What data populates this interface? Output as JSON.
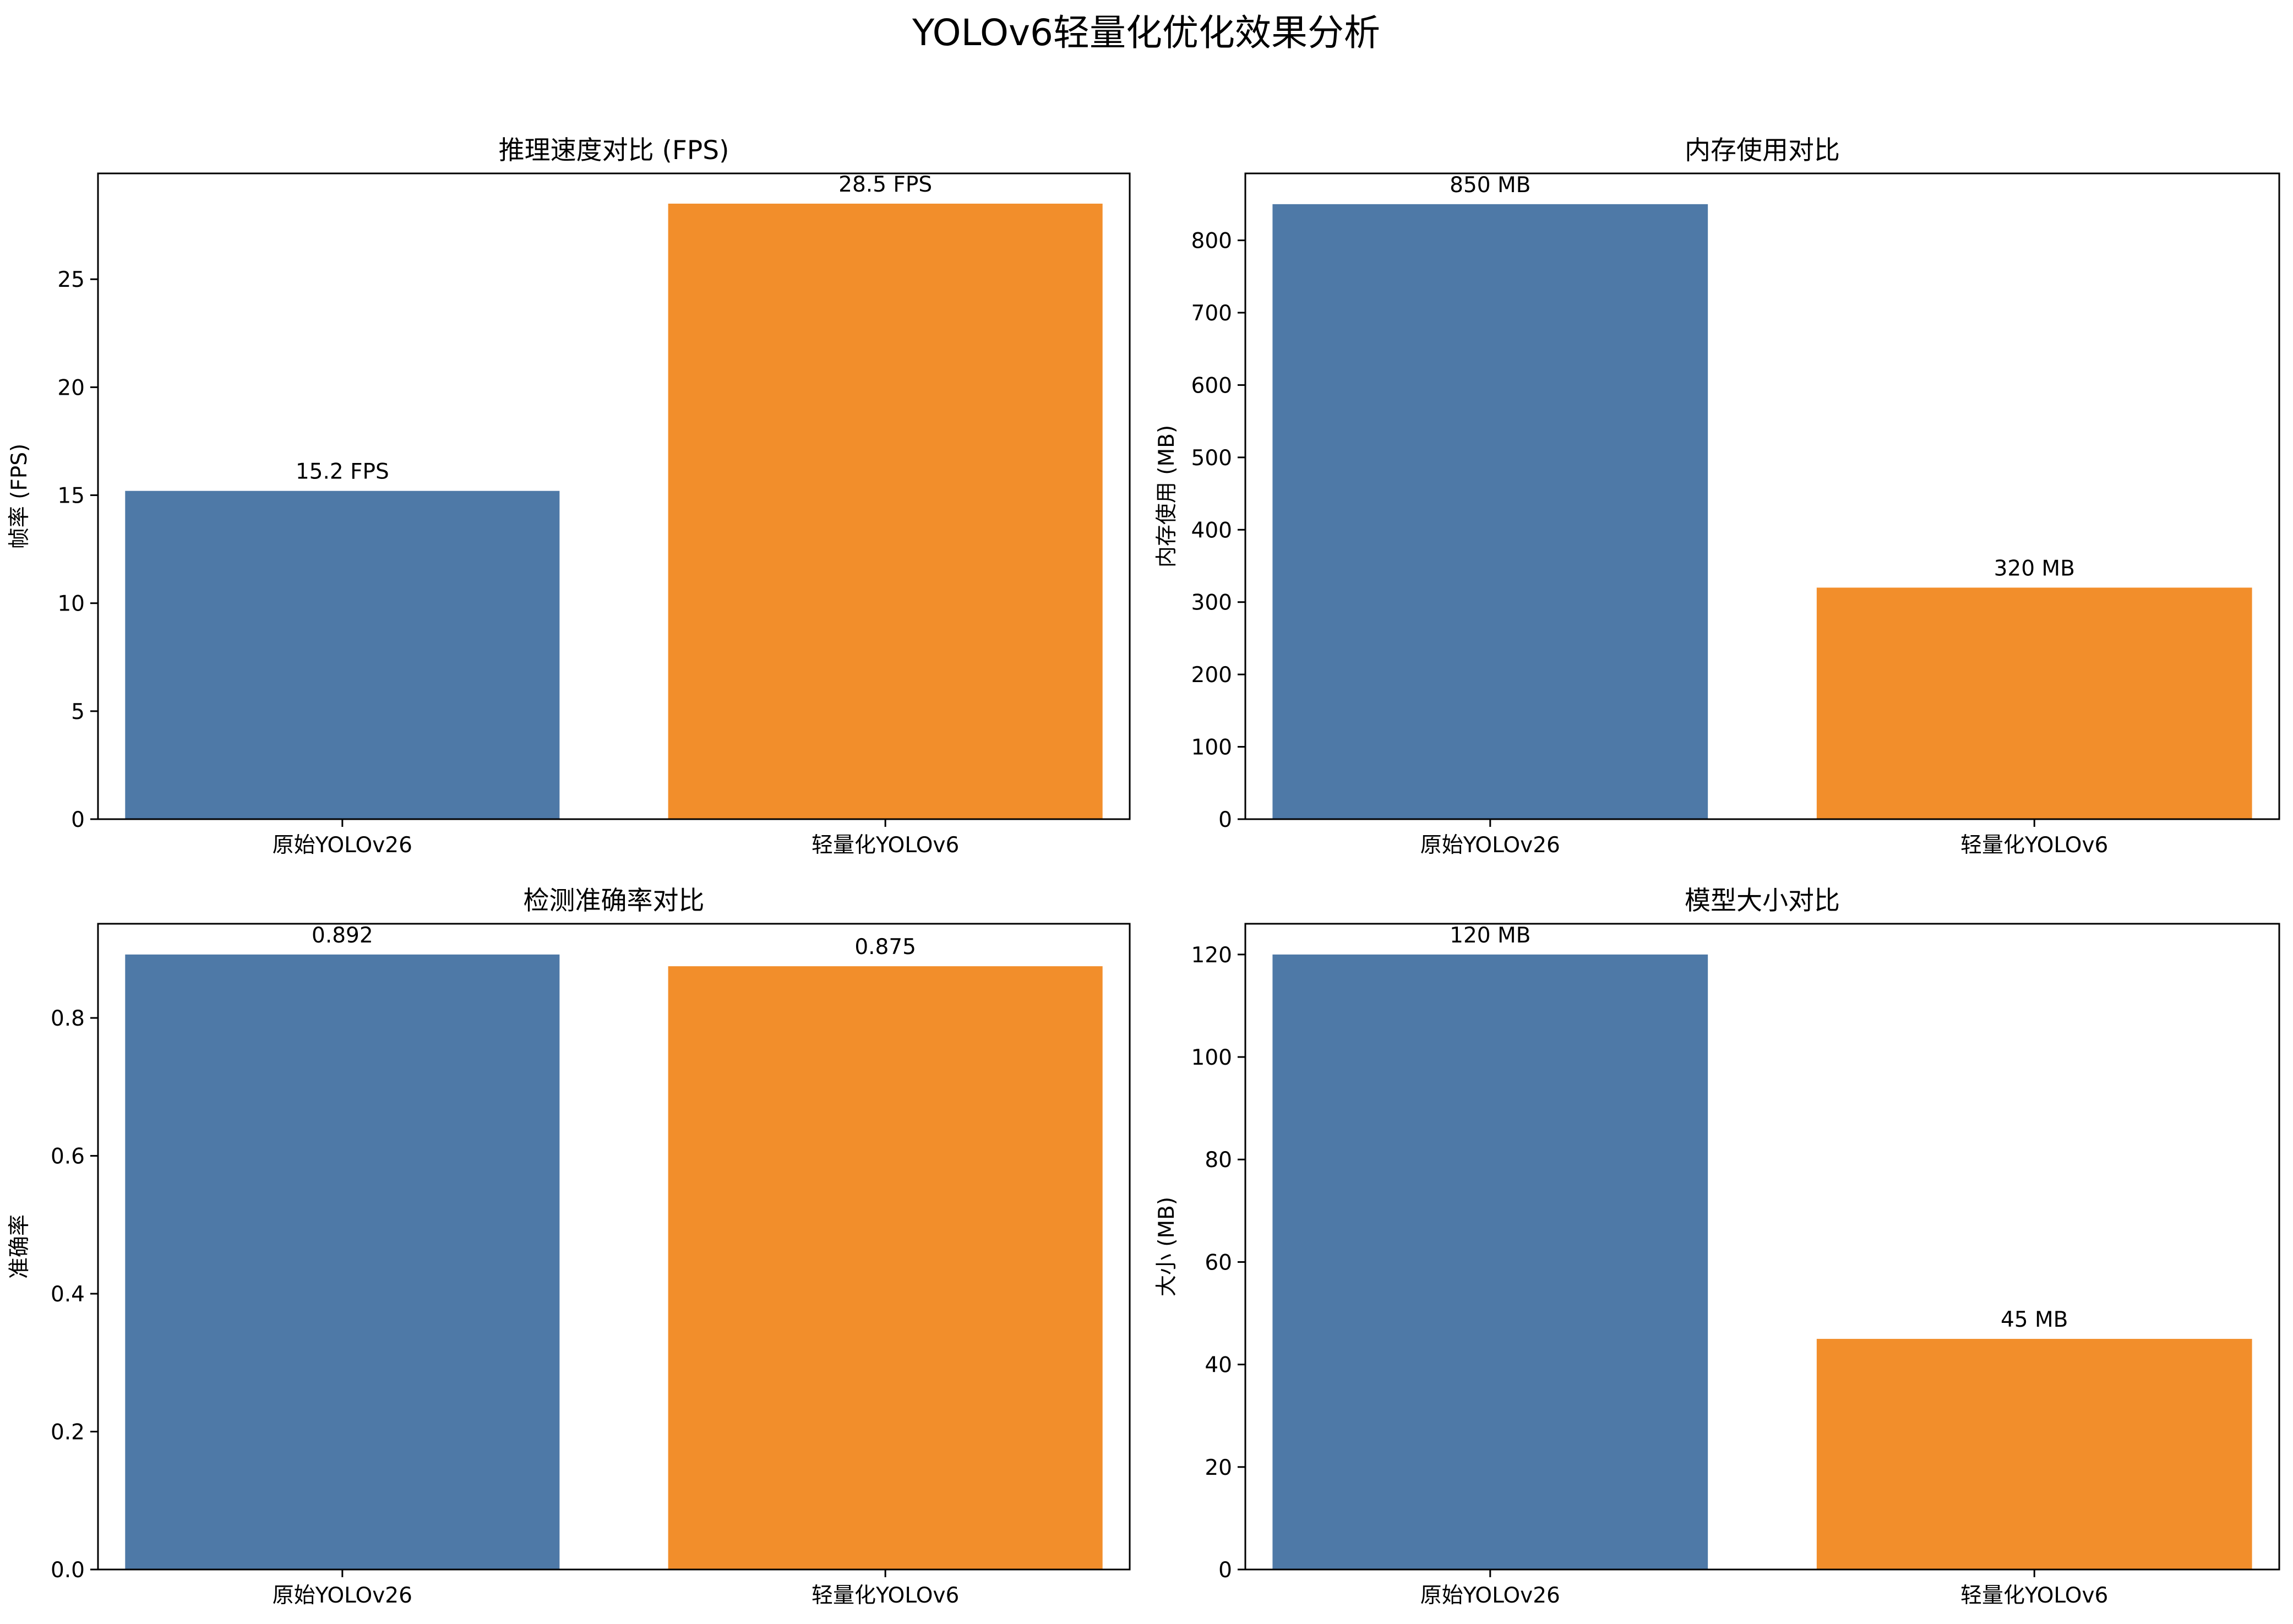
{
  "figure_title": "YOLOv6轻量化优化效果分析",
  "colors": {
    "original": "#4e79a7",
    "lightweight": "#f28e2b"
  },
  "chart_data": [
    {
      "type": "bar",
      "title": "推理速度对比 (FPS)",
      "xlabel": "",
      "ylabel": "帧率 (FPS)",
      "categories": [
        "原始YOLOv26",
        "轻量化YOLOv6"
      ],
      "values": [
        15.2,
        28.5
      ],
      "bar_labels": [
        "15.2 FPS",
        "28.5 FPS"
      ],
      "ylim": [
        0,
        29.9
      ],
      "yticks": [
        0,
        5,
        10,
        15,
        20,
        25
      ],
      "ytick_labels": [
        "0",
        "5",
        "10",
        "15",
        "20",
        "25"
      ]
    },
    {
      "type": "bar",
      "title": "内存使用对比",
      "xlabel": "",
      "ylabel": "内存使用 (MB)",
      "categories": [
        "原始YOLOv26",
        "轻量化YOLOv6"
      ],
      "values": [
        850,
        320
      ],
      "bar_labels": [
        "850 MB",
        "320 MB"
      ],
      "ylim": [
        0,
        892.5
      ],
      "yticks": [
        0,
        100,
        200,
        300,
        400,
        500,
        600,
        700,
        800
      ],
      "ytick_labels": [
        "0",
        "100",
        "200",
        "300",
        "400",
        "500",
        "600",
        "700",
        "800"
      ]
    },
    {
      "type": "bar",
      "title": "检测准确率对比",
      "xlabel": "",
      "ylabel": "准确率",
      "categories": [
        "原始YOLOv26",
        "轻量化YOLOv6"
      ],
      "values": [
        0.892,
        0.875
      ],
      "bar_labels": [
        "0.892",
        "0.875"
      ],
      "ylim": [
        0,
        0.9366
      ],
      "yticks": [
        0.0,
        0.2,
        0.4,
        0.6,
        0.8
      ],
      "ytick_labels": [
        "0.0",
        "0.2",
        "0.4",
        "0.6",
        "0.8"
      ]
    },
    {
      "type": "bar",
      "title": "模型大小对比",
      "xlabel": "",
      "ylabel": "大小 (MB)",
      "categories": [
        "原始YOLOv26",
        "轻量化YOLOv6"
      ],
      "values": [
        120,
        45
      ],
      "bar_labels": [
        "120 MB",
        "45 MB"
      ],
      "ylim": [
        0,
        126
      ],
      "yticks": [
        0,
        20,
        40,
        60,
        80,
        100,
        120
      ],
      "ytick_labels": [
        "0",
        "20",
        "40",
        "60",
        "80",
        "100",
        "120"
      ]
    }
  ]
}
